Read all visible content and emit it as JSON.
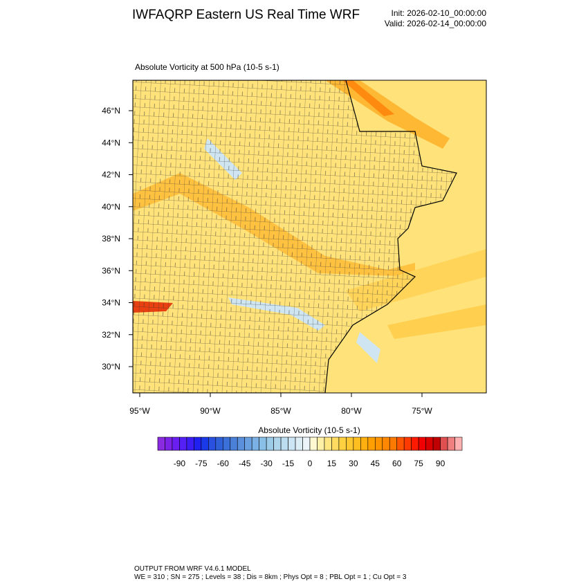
{
  "header": {
    "title": "IWFAQRP Eastern US Real Time WRF",
    "init": "Init: 2026-02-10_00:00:00",
    "valid": "Valid: 2026-02-14_00:00:00"
  },
  "map": {
    "title": "Absolute Vorticity at 500 hPa   (10-5 s-1)",
    "lat_labels": [
      "46°N",
      "44°N",
      "42°N",
      "40°N",
      "38°N",
      "36°N",
      "34°N",
      "32°N",
      "30°N"
    ],
    "lon_labels": [
      "95°W",
      "90°W",
      "85°W",
      "80°W",
      "75°W"
    ]
  },
  "colorbar": {
    "title": "Absolute Vorticity  (10-5 s-1)",
    "range": [
      -105,
      105
    ],
    "ticks": [
      -90,
      -75,
      -60,
      -45,
      -30,
      -15,
      0,
      15,
      30,
      45,
      60,
      75,
      90
    ],
    "colors": [
      "#8a2be2",
      "#7b22e6",
      "#6a1ff0",
      "#5520f5",
      "#3c1ef5",
      "#2020f0",
      "#1a3ae8",
      "#2a50e0",
      "#3060d8",
      "#3a70d8",
      "#4a80d8",
      "#5a90dc",
      "#6aa0e0",
      "#7ab0e4",
      "#8ac0e8",
      "#9ccbe8",
      "#aed4ec",
      "#bcdcf0",
      "#cce5f4",
      "#dcedf6",
      "#ecf5fa",
      "#fff8d0",
      "#fff0a8",
      "#ffe680",
      "#ffdc60",
      "#ffd040",
      "#ffc830",
      "#ffbe20",
      "#ffb010",
      "#ffa000",
      "#ff9400",
      "#ff8800",
      "#ff7a00",
      "#ff5500",
      "#ff3a00",
      "#ff1a00",
      "#f00000",
      "#d80000",
      "#c00000",
      "#e05050",
      "#f08080",
      "#ffb0b0"
    ]
  },
  "footer": {
    "line1": "OUTPUT FROM WRF V4.6.1 MODEL",
    "line2": "WE = 310 ; SN = 275 ; Levels = 38 ; Dis = 8km ; Phys Opt = 8 ; PBL Opt = 1 ; Cu Opt = 3"
  }
}
